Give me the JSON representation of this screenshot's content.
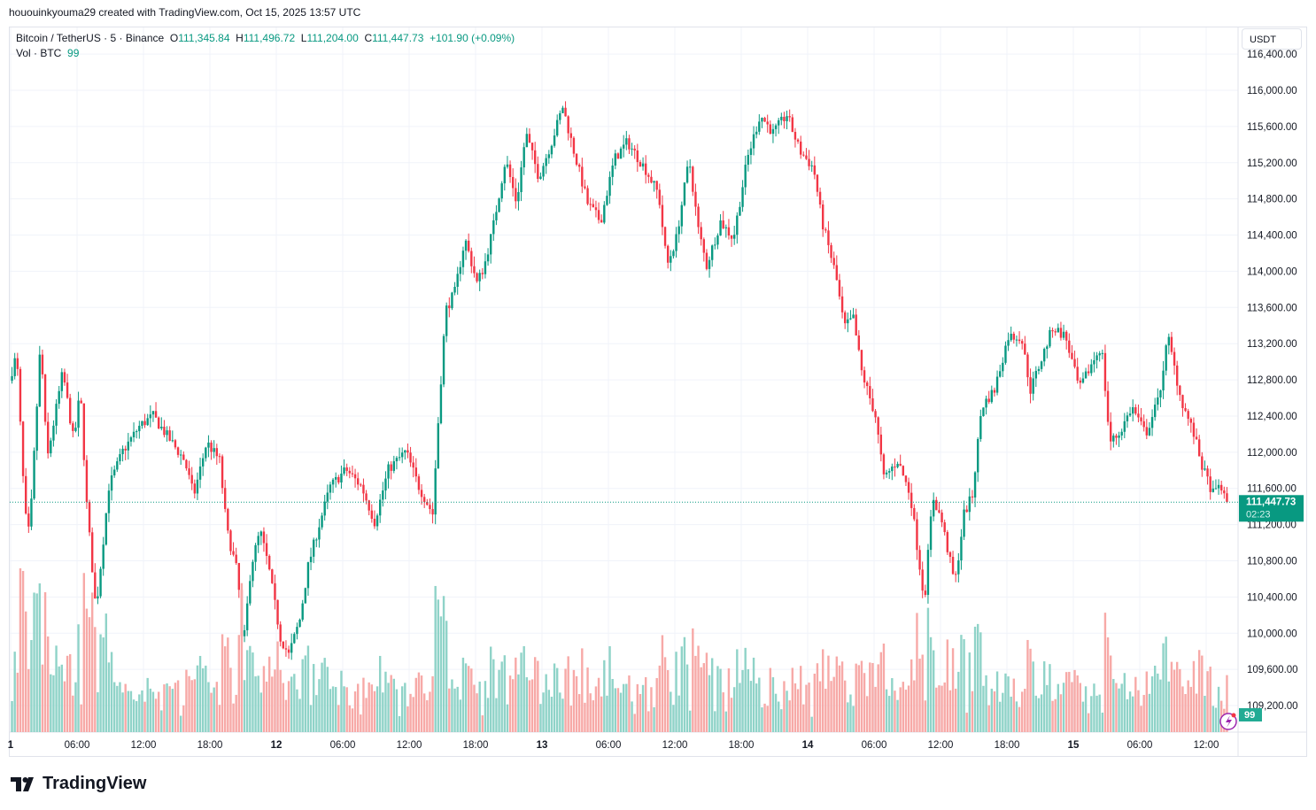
{
  "credit": "hououinkyouma29 created with TradingView.com, Oct 15, 2025 13:57 UTC",
  "legend": {
    "symbol": "Bitcoin / TetherUS · 5 · Binance",
    "o_label": "O",
    "o": "111,345.84",
    "h_label": "H",
    "h": "111,496.72",
    "l_label": "L",
    "l": "111,204.00",
    "c_label": "C",
    "c": "111,447.73",
    "change": "+101.90 (+0.09%)",
    "vol_label": "Vol · BTC",
    "vol": "99"
  },
  "currency_button": "USDT",
  "logo": "TradingView",
  "colors": {
    "up": "#089981",
    "down": "#f23645",
    "up_vol": "#8fd3c8",
    "down_vol": "#f7a9a7",
    "grid": "#f0f3fa"
  },
  "chart_data": {
    "type": "candlestick",
    "interval": "5",
    "ylim": [
      109000,
      116500
    ],
    "y_ticks": [
      "116,400.00",
      "116,000.00",
      "115,600.00",
      "115,200.00",
      "114,800.00",
      "114,400.00",
      "114,000.00",
      "113,600.00",
      "113,200.00",
      "112,800.00",
      "112,400.00",
      "112,000.00",
      "111,600.00",
      "111,200.00",
      "110,800.00",
      "110,400.00",
      "110,000.00",
      "109,600.00",
      "109,200.00"
    ],
    "x_ticks": [
      "1",
      "06:00",
      "12:00",
      "18:00",
      "12",
      "06:00",
      "12:00",
      "18:00",
      "13",
      "06:00",
      "12:00",
      "18:00",
      "14",
      "06:00",
      "12:00",
      "18:00",
      "15",
      "06:00",
      "12:00"
    ],
    "last_price": "111,447.73",
    "countdown": "02:23",
    "last_volume": "99",
    "price_path": [
      [
        "10-11 00:00",
        112790
      ],
      [
        "10-11 00:40",
        113085
      ],
      [
        "10-11 01:25",
        111320
      ],
      [
        "10-11 01:50",
        111080
      ],
      [
        "10-11 02:50",
        113230
      ],
      [
        "10-11 03:25",
        111910
      ],
      [
        "10-11 04:50",
        112890
      ],
      [
        "10-11 05:50",
        112110
      ],
      [
        "10-11 06:25",
        112690
      ],
      [
        "10-11 07:00",
        111420
      ],
      [
        "10-11 07:50",
        110250
      ],
      [
        "10-11 09:00",
        111620
      ],
      [
        "10-11 10:15",
        112010
      ],
      [
        "10-11 11:50",
        112300
      ],
      [
        "10-11 13:00",
        112400
      ],
      [
        "10-11 14:40",
        112110
      ],
      [
        "10-11 15:50",
        111910
      ],
      [
        "10-11 16:40",
        111520
      ],
      [
        "10-11 17:50",
        112110
      ],
      [
        "10-11 19:00",
        111910
      ],
      [
        "10-11 19:40",
        111130
      ],
      [
        "10-11 20:40",
        110640
      ],
      [
        "10-11 21:05",
        109760
      ],
      [
        "10-11 21:50",
        110740
      ],
      [
        "10-11 22:40",
        111130
      ],
      [
        "10-11 23:25",
        110740
      ],
      [
        "10-12 00:30",
        109950
      ],
      [
        "10-12 01:15",
        109760
      ],
      [
        "10-12 02:15",
        110150
      ],
      [
        "10-12 03:00",
        110740
      ],
      [
        "10-12 03:50",
        111130
      ],
      [
        "10-12 05:00",
        111620
      ],
      [
        "10-12 06:25",
        111810
      ],
      [
        "10-12 07:50",
        111620
      ],
      [
        "10-12 09:00",
        111230
      ],
      [
        "10-12 10:15",
        111810
      ],
      [
        "10-12 11:50",
        112010
      ],
      [
        "10-12 13:00",
        111620
      ],
      [
        "10-12 14:15",
        111320
      ],
      [
        "10-12 14:50",
        112500
      ],
      [
        "10-12 15:25",
        113570
      ],
      [
        "10-12 16:15",
        113770
      ],
      [
        "10-12 17:10",
        114360
      ],
      [
        "10-12 18:15",
        113870
      ],
      [
        "10-12 18:55",
        114060
      ],
      [
        "10-12 19:40",
        114460
      ],
      [
        "10-12 20:50",
        115240
      ],
      [
        "10-12 21:50",
        114750
      ],
      [
        "10-12 22:40",
        115530
      ],
      [
        "10-12 23:50",
        115040
      ],
      [
        "10-13 01:00",
        115430
      ],
      [
        "10-13 02:00",
        115820
      ],
      [
        "10-13 03:00",
        115330
      ],
      [
        "10-13 04:15",
        114750
      ],
      [
        "10-13 05:25",
        114550
      ],
      [
        "10-13 06:40",
        115240
      ],
      [
        "10-13 07:50",
        115430
      ],
      [
        "10-13 09:25",
        115140
      ],
      [
        "10-13 10:40",
        114850
      ],
      [
        "10-13 11:25",
        114060
      ],
      [
        "10-13 12:15",
        114360
      ],
      [
        "10-13 13:25",
        115240
      ],
      [
        "10-13 14:15",
        114460
      ],
      [
        "10-13 15:00",
        114060
      ],
      [
        "10-13 16:15",
        114550
      ],
      [
        "10-13 17:25",
        114360
      ],
      [
        "10-13 18:40",
        115240
      ],
      [
        "10-13 19:50",
        115730
      ],
      [
        "10-13 21:00",
        115530
      ],
      [
        "10-13 22:15",
        115730
      ],
      [
        "10-13 23:25",
        115330
      ],
      [
        "10-14 00:40",
        115140
      ],
      [
        "10-14 01:25",
        114550
      ],
      [
        "10-14 02:40",
        113960
      ],
      [
        "10-14 03:25",
        113380
      ],
      [
        "10-14 04:15",
        113480
      ],
      [
        "10-14 05:00",
        112890
      ],
      [
        "10-14 06:15",
        112400
      ],
      [
        "10-14 07:00",
        111710
      ],
      [
        "10-14 08:15",
        111910
      ],
      [
        "10-14 09:25",
        111520
      ],
      [
        "10-14 10:40",
        110350
      ],
      [
        "10-14 11:25",
        111520
      ],
      [
        "10-14 12:15",
        111230
      ],
      [
        "10-14 13:25",
        110540
      ],
      [
        "10-14 14:15",
        111320
      ],
      [
        "10-14 15:00",
        111520
      ],
      [
        "10-14 15:50",
        112500
      ],
      [
        "10-14 17:00",
        112690
      ],
      [
        "10-14 18:15",
        113280
      ],
      [
        "10-14 19:25",
        113280
      ],
      [
        "10-14 20:15",
        112690
      ],
      [
        "10-14 21:25",
        113085
      ],
      [
        "10-14 22:15",
        113380
      ],
      [
        "10-14 23:25",
        113280
      ],
      [
        "10-15 00:40",
        112690
      ],
      [
        "10-15 01:50",
        112990
      ],
      [
        "10-15 02:40",
        113180
      ],
      [
        "10-15 03:25",
        112110
      ],
      [
        "10-15 04:15",
        112200
      ],
      [
        "10-15 05:25",
        112500
      ],
      [
        "10-15 06:40",
        112200
      ],
      [
        "10-15 07:50",
        112590
      ],
      [
        "10-15 08:40",
        113280
      ],
      [
        "10-15 09:50",
        112590
      ],
      [
        "10-15 11:00",
        112200
      ],
      [
        "10-15 11:50",
        111810
      ],
      [
        "10-15 12:50",
        111520
      ],
      [
        "10-15 13:25",
        111660
      ],
      [
        "10-15 13:50",
        111448
      ]
    ]
  }
}
